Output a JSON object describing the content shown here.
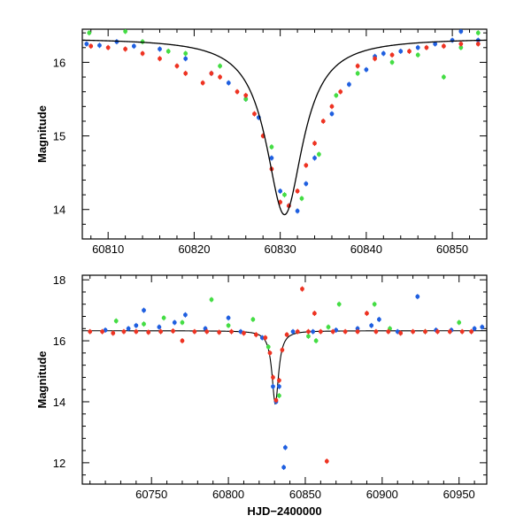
{
  "chart_data": [
    {
      "type": "scatter",
      "panel": "top",
      "ylabel": "Magnitude",
      "xlabel": "",
      "xlim": [
        60807,
        60854
      ],
      "ylim": [
        16.45,
        13.6
      ],
      "x_ticks": [
        60810,
        60820,
        60830,
        60840,
        60850
      ],
      "y_ticks": [
        14,
        15,
        16
      ],
      "colors": {
        "blue": "#1f5fe0",
        "green": "#44dd44",
        "red": "#ee3322",
        "model": "#000000"
      },
      "model_curve": {
        "t0": 60830.5,
        "peak": 13.93,
        "base": 16.33,
        "width": 2.6
      },
      "series": [
        {
          "name": "blue",
          "points": [
            [
              60807.5,
              16.25
            ],
            [
              60809,
              16.23
            ],
            [
              60811,
              16.28
            ],
            [
              60813,
              16.22
            ],
            [
              60816,
              16.18
            ],
            [
              60819,
              16.05
            ],
            [
              60822,
              15.85
            ],
            [
              60824,
              15.72
            ],
            [
              60826,
              15.5
            ],
            [
              60827.5,
              15.25
            ],
            [
              60829,
              14.7
            ],
            [
              60830,
              14.25
            ],
            [
              60831,
              14.05
            ],
            [
              60832,
              13.98
            ],
            [
              60833,
              14.35
            ],
            [
              60834,
              14.7
            ],
            [
              60836,
              15.3
            ],
            [
              60838,
              15.7
            ],
            [
              60840,
              15.9
            ],
            [
              60841,
              16.08
            ],
            [
              60842,
              16.12
            ],
            [
              60844,
              16.15
            ],
            [
              60846,
              16.2
            ],
            [
              60848,
              16.25
            ],
            [
              60850,
              16.3
            ],
            [
              60851,
              16.42
            ],
            [
              60853,
              16.3
            ]
          ]
        },
        {
          "name": "green",
          "points": [
            [
              60807.8,
              16.4
            ],
            [
              60812,
              16.42
            ],
            [
              60814,
              16.28
            ],
            [
              60817,
              16.15
            ],
            [
              60819,
              16.12
            ],
            [
              60823,
              15.95
            ],
            [
              60826,
              15.5
            ],
            [
              60829,
              14.85
            ],
            [
              60830.5,
              14.2
            ],
            [
              60832.5,
              14.15
            ],
            [
              60834.5,
              14.75
            ],
            [
              60836.5,
              15.55
            ],
            [
              60839,
              15.85
            ],
            [
              60843,
              16.0
            ],
            [
              60846,
              16.1
            ],
            [
              60849,
              15.8
            ],
            [
              60851,
              16.2
            ],
            [
              60853,
              16.4
            ]
          ]
        },
        {
          "name": "red",
          "points": [
            [
              60808,
              16.22
            ],
            [
              60810,
              16.2
            ],
            [
              60812,
              16.18
            ],
            [
              60814,
              16.12
            ],
            [
              60816,
              16.05
            ],
            [
              60818,
              15.95
            ],
            [
              60819,
              15.85
            ],
            [
              60821,
              15.72
            ],
            [
              60822,
              15.85
            ],
            [
              60823,
              15.8
            ],
            [
              60825,
              15.6
            ],
            [
              60826,
              15.55
            ],
            [
              60827,
              15.3
            ],
            [
              60828,
              15.0
            ],
            [
              60829,
              14.55
            ],
            [
              60830,
              14.1
            ],
            [
              60831,
              14.05
            ],
            [
              60832,
              14.25
            ],
            [
              60833,
              14.6
            ],
            [
              60834,
              14.9
            ],
            [
              60835,
              15.2
            ],
            [
              60836,
              15.4
            ],
            [
              60837,
              15.6
            ],
            [
              60839,
              15.95
            ],
            [
              60841,
              16.05
            ],
            [
              60843,
              16.1
            ],
            [
              60845,
              16.15
            ],
            [
              60847,
              16.2
            ],
            [
              60849,
              16.22
            ],
            [
              60851,
              16.25
            ],
            [
              60853,
              16.25
            ]
          ]
        }
      ]
    },
    {
      "type": "scatter",
      "panel": "bottom",
      "ylabel": "Magnitude",
      "xlabel": "HJD−2400000",
      "xlim": [
        60705,
        60968
      ],
      "ylim": [
        18.15,
        11.3
      ],
      "x_ticks": [
        60750,
        60800,
        60850,
        60900,
        60950
      ],
      "y_ticks": [
        12,
        14,
        16,
        18
      ],
      "colors": {
        "blue": "#1f5fe0",
        "green": "#44dd44",
        "red": "#ee3322",
        "model": "#000000"
      },
      "model_curve": {
        "t0": 60830.5,
        "peak": 13.93,
        "base": 16.33,
        "width": 2.6
      },
      "series": [
        {
          "name": "blue",
          "points": [
            [
              60720,
              16.35
            ],
            [
              60735,
              16.4
            ],
            [
              60740,
              16.5
            ],
            [
              60745,
              17.0
            ],
            [
              60755,
              16.45
            ],
            [
              60765,
              16.6
            ],
            [
              60772,
              16.85
            ],
            [
              60785,
              16.4
            ],
            [
              60800,
              16.75
            ],
            [
              60808,
              16.3
            ],
            [
              60822,
              16.1
            ],
            [
              60829,
              14.5
            ],
            [
              60831,
              14.0
            ],
            [
              60833,
              14.5
            ],
            [
              60836,
              11.85
            ],
            [
              60837,
              12.5
            ],
            [
              60842,
              16.3
            ],
            [
              60855,
              16.3
            ],
            [
              60870,
              16.35
            ],
            [
              60884,
              16.4
            ],
            [
              60893,
              16.5
            ],
            [
              60898,
              16.7
            ],
            [
              60910,
              16.3
            ],
            [
              60923,
              17.45
            ],
            [
              60935,
              16.35
            ],
            [
              60945,
              16.35
            ],
            [
              60960,
              16.4
            ],
            [
              60965,
              16.45
            ]
          ]
        },
        {
          "name": "green",
          "points": [
            [
              60727,
              16.65
            ],
            [
              60745,
              16.55
            ],
            [
              60758,
              16.75
            ],
            [
              60770,
              16.6
            ],
            [
              60789,
              17.35
            ],
            [
              60800,
              16.5
            ],
            [
              60816,
              16.7
            ],
            [
              60826,
              15.8
            ],
            [
              60833,
              14.2
            ],
            [
              60852,
              16.15
            ],
            [
              60857,
              16.0
            ],
            [
              60865,
              16.45
            ],
            [
              60872,
              17.2
            ],
            [
              60895,
              17.2
            ],
            [
              60905,
              16.4
            ],
            [
              60928,
              16.3
            ],
            [
              60950,
              16.6
            ]
          ]
        },
        {
          "name": "red",
          "points": [
            [
              60710,
              16.3
            ],
            [
              60718,
              16.3
            ],
            [
              60725,
              16.25
            ],
            [
              60732,
              16.3
            ],
            [
              60740,
              16.3
            ],
            [
              60748,
              16.28
            ],
            [
              60756,
              16.3
            ],
            [
              60764,
              16.32
            ],
            [
              60770,
              16.0
            ],
            [
              60778,
              16.3
            ],
            [
              60786,
              16.3
            ],
            [
              60794,
              16.28
            ],
            [
              60802,
              16.3
            ],
            [
              60810,
              16.25
            ],
            [
              60818,
              16.2
            ],
            [
              60824,
              16.1
            ],
            [
              60827,
              15.6
            ],
            [
              60829,
              14.8
            ],
            [
              60831,
              14.05
            ],
            [
              60833,
              14.7
            ],
            [
              60835,
              15.7
            ],
            [
              60838,
              16.2
            ],
            [
              60845,
              16.3
            ],
            [
              60848,
              17.7
            ],
            [
              60852,
              16.3
            ],
            [
              60856,
              16.9
            ],
            [
              60860,
              16.3
            ],
            [
              60864,
              12.05
            ],
            [
              60868,
              16.3
            ],
            [
              60876,
              16.3
            ],
            [
              60884,
              16.3
            ],
            [
              60890,
              16.9
            ],
            [
              60896,
              16.3
            ],
            [
              60904,
              16.3
            ],
            [
              60912,
              16.25
            ],
            [
              60920,
              16.3
            ],
            [
              60928,
              16.3
            ],
            [
              60936,
              16.3
            ],
            [
              60944,
              16.3
            ],
            [
              60952,
              16.3
            ],
            [
              60958,
              16.3
            ]
          ]
        }
      ]
    }
  ]
}
